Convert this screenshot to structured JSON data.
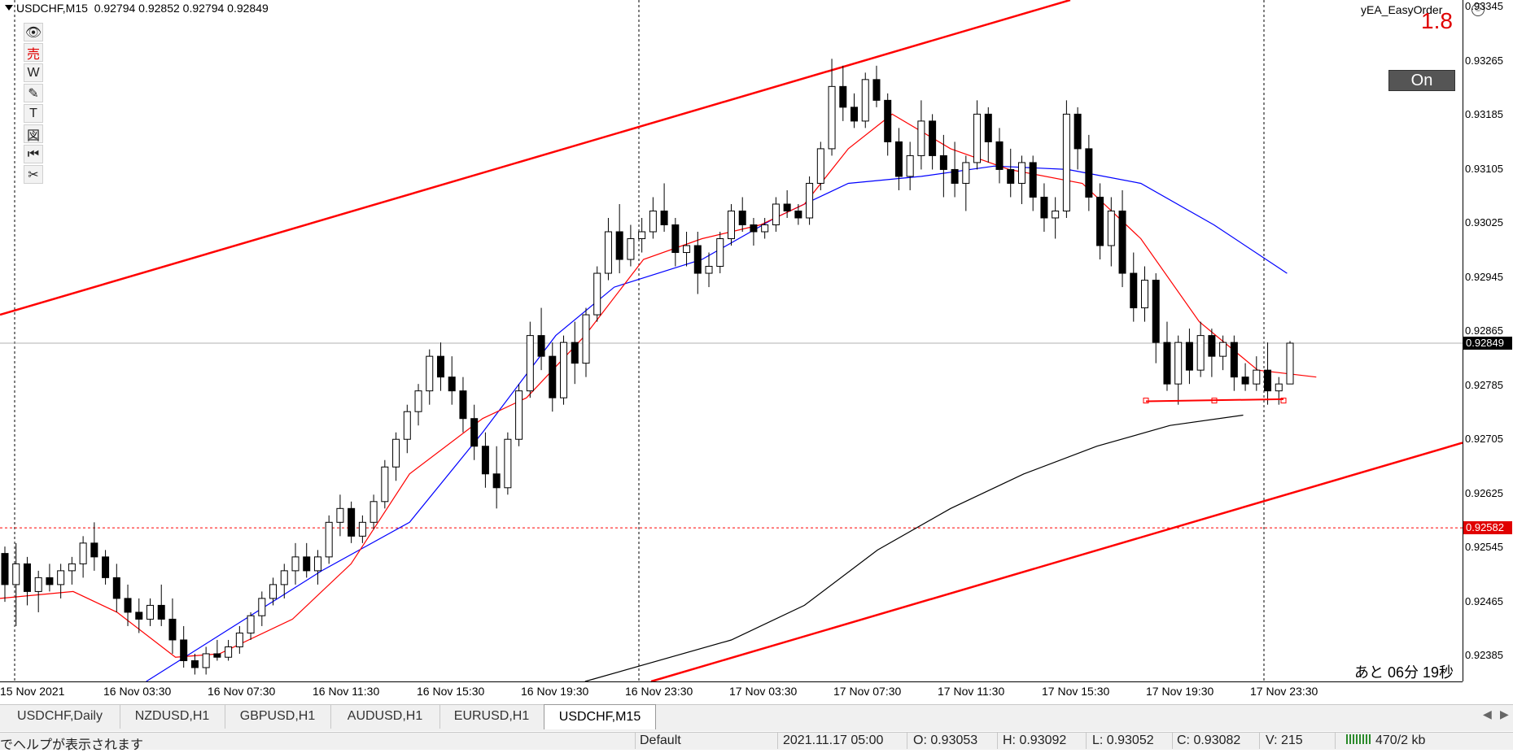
{
  "chart_header": {
    "symbol_tf": "USDCHF,M15",
    "ohlc": "0.92794 0.92852 0.92794 0.92849"
  },
  "ea": {
    "title": "yEA_EasyOrder",
    "number": "1.8",
    "on_label": "On",
    "countdown": "あと 06分 19秒"
  },
  "toolbar": [
    {
      "icon": "eye-icon",
      "glyph": "👁",
      "red": false
    },
    {
      "icon": "sell-icon",
      "glyph": "売",
      "red": true
    },
    {
      "icon": "w-icon",
      "glyph": "W",
      "red": false
    },
    {
      "icon": "pencil-icon",
      "glyph": "✎",
      "red": false
    },
    {
      "icon": "text-icon",
      "glyph": "T",
      "red": false
    },
    {
      "icon": "figure-icon",
      "glyph": "図",
      "red": false
    },
    {
      "icon": "rewind-icon",
      "glyph": "⏮",
      "red": false
    },
    {
      "icon": "scissors-icon",
      "glyph": "✂",
      "red": false
    }
  ],
  "price_ticks": [
    "0.93345",
    "0.93265",
    "0.93185",
    "0.93105",
    "0.93025",
    "0.92945",
    "0.92865",
    "0.92785",
    "0.92705",
    "0.92625",
    "0.92545",
    "0.92465",
    "0.92385"
  ],
  "price_tags": {
    "current": "0.92849",
    "alert": "0.92582",
    "alert_color": "#e00000",
    "current_color": "#000000"
  },
  "time_ticks": [
    "15 Nov 2021",
    "16 Nov 03:30",
    "16 Nov 07:30",
    "16 Nov 11:30",
    "16 Nov 15:30",
    "16 Nov 19:30",
    "16 Nov 23:30",
    "17 Nov 03:30",
    "17 Nov 07:30",
    "17 Nov 11:30",
    "17 Nov 15:30",
    "17 Nov 19:30",
    "17 Nov 23:30"
  ],
  "tabs": [
    "USDCHF,Daily",
    "NZDUSD,H1",
    "GBPUSD,H1",
    "AUDUSD,H1",
    "EURUSD,H1",
    "USDCHF,M15"
  ],
  "active_tab": 5,
  "status": {
    "help": "でヘルプが表示されます",
    "profile": "Default",
    "datetime": "2021.11.17 05:00",
    "open": "O: 0.93053",
    "high": "H: 0.93092",
    "low": "L: 0.93052",
    "close": "C: 0.93082",
    "volume": "V: 215",
    "traffic": "470/2 kb"
  },
  "colors": {
    "bull": "#ffffff",
    "bear": "#000000",
    "ma_fast": "#ff0000",
    "ma_mid": "#0000ff",
    "ma_slow": "#000000",
    "channel": "#ff0000"
  },
  "chart_data": {
    "type": "candlestick",
    "symbol": "USDCHF",
    "timeframe": "M15",
    "ylim": [
      0.9236,
      0.93345
    ],
    "candles": [
      [
        0.92545,
        0.92555,
        0.92475,
        0.925
      ],
      [
        0.925,
        0.9256,
        0.9244,
        0.9253
      ],
      [
        0.9253,
        0.9254,
        0.9247,
        0.9249
      ],
      [
        0.9249,
        0.9252,
        0.9246,
        0.9251
      ],
      [
        0.9251,
        0.9253,
        0.9249,
        0.925
      ],
      [
        0.925,
        0.9253,
        0.9248,
        0.9252
      ],
      [
        0.9252,
        0.9254,
        0.925,
        0.9253
      ],
      [
        0.9253,
        0.9257,
        0.9251,
        0.9256
      ],
      [
        0.9256,
        0.9259,
        0.9252,
        0.9254
      ],
      [
        0.9254,
        0.9255,
        0.925,
        0.9251
      ],
      [
        0.9251,
        0.9253,
        0.9246,
        0.9248
      ],
      [
        0.9248,
        0.925,
        0.9244,
        0.9246
      ],
      [
        0.9246,
        0.9248,
        0.9243,
        0.9245
      ],
      [
        0.9245,
        0.9248,
        0.9244,
        0.9247
      ],
      [
        0.9247,
        0.925,
        0.9244,
        0.9245
      ],
      [
        0.9245,
        0.9248,
        0.924,
        0.9242
      ],
      [
        0.9242,
        0.9244,
        0.9238,
        0.9239
      ],
      [
        0.9239,
        0.924,
        0.9237,
        0.9238
      ],
      [
        0.9238,
        0.9241,
        0.9237,
        0.924
      ],
      [
        0.924,
        0.9242,
        0.9239,
        0.92395
      ],
      [
        0.92395,
        0.9242,
        0.9239,
        0.9241
      ],
      [
        0.9241,
        0.9244,
        0.924,
        0.9243
      ],
      [
        0.9243,
        0.9246,
        0.9242,
        0.92455
      ],
      [
        0.92455,
        0.9249,
        0.9244,
        0.9248
      ],
      [
        0.9248,
        0.9251,
        0.9247,
        0.925
      ],
      [
        0.925,
        0.9253,
        0.9248,
        0.9252
      ],
      [
        0.9252,
        0.9256,
        0.925,
        0.9254
      ],
      [
        0.9254,
        0.9256,
        0.9251,
        0.9252
      ],
      [
        0.9252,
        0.9255,
        0.925,
        0.9254
      ],
      [
        0.9254,
        0.926,
        0.9253,
        0.9259
      ],
      [
        0.9259,
        0.9263,
        0.9257,
        0.9261
      ],
      [
        0.9261,
        0.9262,
        0.9256,
        0.9257
      ],
      [
        0.9257,
        0.926,
        0.9256,
        0.9259
      ],
      [
        0.9259,
        0.9263,
        0.9258,
        0.9262
      ],
      [
        0.9262,
        0.9268,
        0.9261,
        0.9267
      ],
      [
        0.9267,
        0.9272,
        0.9265,
        0.9271
      ],
      [
        0.9271,
        0.9276,
        0.9269,
        0.9275
      ],
      [
        0.9275,
        0.9279,
        0.9273,
        0.9278
      ],
      [
        0.9278,
        0.9284,
        0.9276,
        0.9283
      ],
      [
        0.9283,
        0.9285,
        0.9278,
        0.928
      ],
      [
        0.928,
        0.9283,
        0.9276,
        0.9278
      ],
      [
        0.9278,
        0.928,
        0.9272,
        0.9274
      ],
      [
        0.9274,
        0.9276,
        0.9268,
        0.927
      ],
      [
        0.927,
        0.9272,
        0.9264,
        0.9266
      ],
      [
        0.9266,
        0.927,
        0.9261,
        0.9264
      ],
      [
        0.9264,
        0.9272,
        0.9263,
        0.9271
      ],
      [
        0.9271,
        0.9279,
        0.927,
        0.9278
      ],
      [
        0.9278,
        0.9288,
        0.9277,
        0.9286
      ],
      [
        0.9286,
        0.929,
        0.9281,
        0.9283
      ],
      [
        0.9283,
        0.9285,
        0.9275,
        0.9277
      ],
      [
        0.9277,
        0.9286,
        0.9276,
        0.9285
      ],
      [
        0.9285,
        0.9288,
        0.9279,
        0.9282
      ],
      [
        0.9282,
        0.929,
        0.928,
        0.9289
      ],
      [
        0.9289,
        0.9296,
        0.9288,
        0.9295
      ],
      [
        0.9295,
        0.9303,
        0.9294,
        0.9301
      ],
      [
        0.9301,
        0.9305,
        0.9295,
        0.9297
      ],
      [
        0.9297,
        0.9302,
        0.9296,
        0.93
      ],
      [
        0.93,
        0.9303,
        0.9298,
        0.9301
      ],
      [
        0.9301,
        0.9306,
        0.93,
        0.9304
      ],
      [
        0.9304,
        0.9308,
        0.9301,
        0.9302
      ],
      [
        0.9302,
        0.9303,
        0.9296,
        0.9298
      ],
      [
        0.9298,
        0.9301,
        0.9296,
        0.9299
      ],
      [
        0.9299,
        0.9301,
        0.9292,
        0.9295
      ],
      [
        0.9295,
        0.9298,
        0.9293,
        0.9296
      ],
      [
        0.9296,
        0.9301,
        0.9295,
        0.93
      ],
      [
        0.93,
        0.9305,
        0.9299,
        0.9304
      ],
      [
        0.9304,
        0.9306,
        0.9301,
        0.9302
      ],
      [
        0.9302,
        0.9303,
        0.9299,
        0.9301
      ],
      [
        0.9301,
        0.9303,
        0.93,
        0.9302
      ],
      [
        0.9302,
        0.9306,
        0.9301,
        0.9305
      ],
      [
        0.9305,
        0.9307,
        0.9303,
        0.9304
      ],
      [
        0.9304,
        0.9305,
        0.9302,
        0.9303
      ],
      [
        0.9303,
        0.9309,
        0.9302,
        0.9308
      ],
      [
        0.9308,
        0.9314,
        0.9307,
        0.9313
      ],
      [
        0.9313,
        0.9326,
        0.9312,
        0.9322
      ],
      [
        0.9322,
        0.9325,
        0.9317,
        0.9319
      ],
      [
        0.9319,
        0.9321,
        0.9316,
        0.9317
      ],
      [
        0.9317,
        0.9324,
        0.9316,
        0.9323
      ],
      [
        0.9323,
        0.9325,
        0.9319,
        0.932
      ],
      [
        0.932,
        0.9321,
        0.9312,
        0.9314
      ],
      [
        0.9314,
        0.9316,
        0.9307,
        0.9309
      ],
      [
        0.9309,
        0.9314,
        0.9307,
        0.9312
      ],
      [
        0.9312,
        0.932,
        0.931,
        0.9317
      ],
      [
        0.9317,
        0.9318,
        0.931,
        0.9312
      ],
      [
        0.9312,
        0.9315,
        0.9306,
        0.931
      ],
      [
        0.931,
        0.9314,
        0.9306,
        0.9308
      ],
      [
        0.9308,
        0.9312,
        0.9304,
        0.9311
      ],
      [
        0.9311,
        0.932,
        0.931,
        0.9318
      ],
      [
        0.9318,
        0.9319,
        0.9311,
        0.9314
      ],
      [
        0.9314,
        0.9316,
        0.9308,
        0.931
      ],
      [
        0.931,
        0.9313,
        0.9306,
        0.9308
      ],
      [
        0.9308,
        0.9312,
        0.9305,
        0.9311
      ],
      [
        0.9311,
        0.9312,
        0.9304,
        0.9306
      ],
      [
        0.9306,
        0.9308,
        0.9301,
        0.9303
      ],
      [
        0.9303,
        0.9306,
        0.93,
        0.9304
      ],
      [
        0.9304,
        0.932,
        0.9303,
        0.9318
      ],
      [
        0.9318,
        0.9319,
        0.931,
        0.9313
      ],
      [
        0.9313,
        0.9315,
        0.9304,
        0.9306
      ],
      [
        0.9306,
        0.9308,
        0.9297,
        0.9299
      ],
      [
        0.9299,
        0.9306,
        0.9296,
        0.9304
      ],
      [
        0.9304,
        0.9307,
        0.9293,
        0.9295
      ],
      [
        0.9295,
        0.9298,
        0.9288,
        0.929
      ],
      [
        0.929,
        0.9296,
        0.9288,
        0.9294
      ],
      [
        0.9294,
        0.9295,
        0.9282,
        0.9285
      ],
      [
        0.9285,
        0.9288,
        0.9278,
        0.9279
      ],
      [
        0.9279,
        0.9286,
        0.9276,
        0.9285
      ],
      [
        0.9285,
        0.9287,
        0.9279,
        0.9281
      ],
      [
        0.9281,
        0.9288,
        0.928,
        0.9286
      ],
      [
        0.9286,
        0.9287,
        0.928,
        0.9283
      ],
      [
        0.9283,
        0.9286,
        0.9281,
        0.9285
      ],
      [
        0.9285,
        0.9286,
        0.9278,
        0.928
      ],
      [
        0.928,
        0.9282,
        0.9278,
        0.9279
      ],
      [
        0.9279,
        0.9283,
        0.9278,
        0.9281
      ],
      [
        0.9281,
        0.9285,
        0.9276,
        0.9278
      ],
      [
        0.9278,
        0.928,
        0.9276,
        0.9279
      ],
      [
        0.9279,
        0.92852,
        0.9279,
        0.92849
      ]
    ],
    "ma_fast": [
      [
        0,
        0.9248
      ],
      [
        0.05,
        0.9249
      ],
      [
        0.08,
        0.9246
      ],
      [
        0.12,
        0.92395
      ],
      [
        0.15,
        0.924
      ],
      [
        0.2,
        0.9245
      ],
      [
        0.24,
        0.9253
      ],
      [
        0.28,
        0.9266
      ],
      [
        0.33,
        0.9274
      ],
      [
        0.36,
        0.9277
      ],
      [
        0.4,
        0.9286
      ],
      [
        0.44,
        0.9297
      ],
      [
        0.48,
        0.93
      ],
      [
        0.52,
        0.9302
      ],
      [
        0.55,
        0.9305
      ],
      [
        0.58,
        0.9313
      ],
      [
        0.61,
        0.9318
      ],
      [
        0.65,
        0.9313
      ],
      [
        0.69,
        0.931
      ],
      [
        0.74,
        0.9308
      ],
      [
        0.78,
        0.93
      ],
      [
        0.82,
        0.9288
      ],
      [
        0.86,
        0.9281
      ],
      [
        0.9,
        0.928
      ]
    ],
    "ma_mid": [
      [
        0.1,
        0.9236
      ],
      [
        0.16,
        0.9244
      ],
      [
        0.22,
        0.9252
      ],
      [
        0.28,
        0.9259
      ],
      [
        0.33,
        0.9272
      ],
      [
        0.38,
        0.9286
      ],
      [
        0.42,
        0.9293
      ],
      [
        0.48,
        0.9297
      ],
      [
        0.53,
        0.9303
      ],
      [
        0.58,
        0.9308
      ],
      [
        0.63,
        0.9309
      ],
      [
        0.68,
        0.93105
      ],
      [
        0.73,
        0.931
      ],
      [
        0.78,
        0.9308
      ],
      [
        0.83,
        0.9302
      ],
      [
        0.88,
        0.9295
      ]
    ],
    "ma_slow": [
      [
        0.4,
        0.9236
      ],
      [
        0.5,
        0.9242
      ],
      [
        0.55,
        0.9247
      ],
      [
        0.6,
        0.9255
      ],
      [
        0.65,
        0.9261
      ],
      [
        0.7,
        0.9266
      ],
      [
        0.75,
        0.927
      ],
      [
        0.8,
        0.9273
      ],
      [
        0.85,
        0.92745
      ]
    ]
  }
}
